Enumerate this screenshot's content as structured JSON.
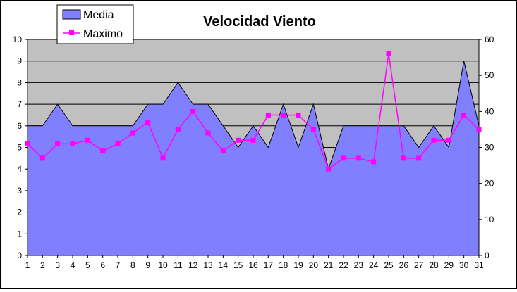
{
  "chart_data": {
    "type": "area",
    "title": "Velocidad Viento",
    "x": [
      1,
      2,
      3,
      4,
      5,
      6,
      7,
      8,
      9,
      10,
      11,
      12,
      13,
      14,
      15,
      16,
      17,
      18,
      19,
      20,
      21,
      22,
      23,
      24,
      25,
      26,
      27,
      28,
      29,
      30,
      31
    ],
    "series": [
      {
        "name": "Media",
        "type": "area",
        "axis": "left",
        "color": "#8080FF",
        "values": [
          6,
          6,
          7,
          6,
          6,
          6,
          6,
          6,
          7,
          7,
          8,
          7,
          7,
          6,
          5,
          6,
          5,
          7,
          5,
          7,
          4,
          6,
          6,
          6,
          6,
          6,
          5,
          6,
          5,
          9,
          6
        ]
      },
      {
        "name": "Maximo",
        "type": "line",
        "axis": "right",
        "color": "#FF00FF",
        "marker": "square",
        "values": [
          31,
          27,
          31,
          31,
          32,
          29,
          31,
          34,
          37,
          27,
          35,
          40,
          34,
          29,
          32,
          32,
          39,
          39,
          39,
          35,
          24,
          27,
          27,
          26,
          56,
          27,
          27,
          32,
          32,
          39,
          35
        ]
      }
    ],
    "y_left": {
      "min": 0,
      "max": 10,
      "ticks": [
        0,
        1,
        2,
        3,
        4,
        5,
        6,
        7,
        8,
        9,
        10
      ]
    },
    "y_right": {
      "min": 0,
      "max": 60,
      "ticks": [
        0,
        10,
        20,
        30,
        40,
        50,
        60
      ]
    },
    "plot_background": "#C0C0C0",
    "grid": true,
    "legend_position": "top-left"
  }
}
